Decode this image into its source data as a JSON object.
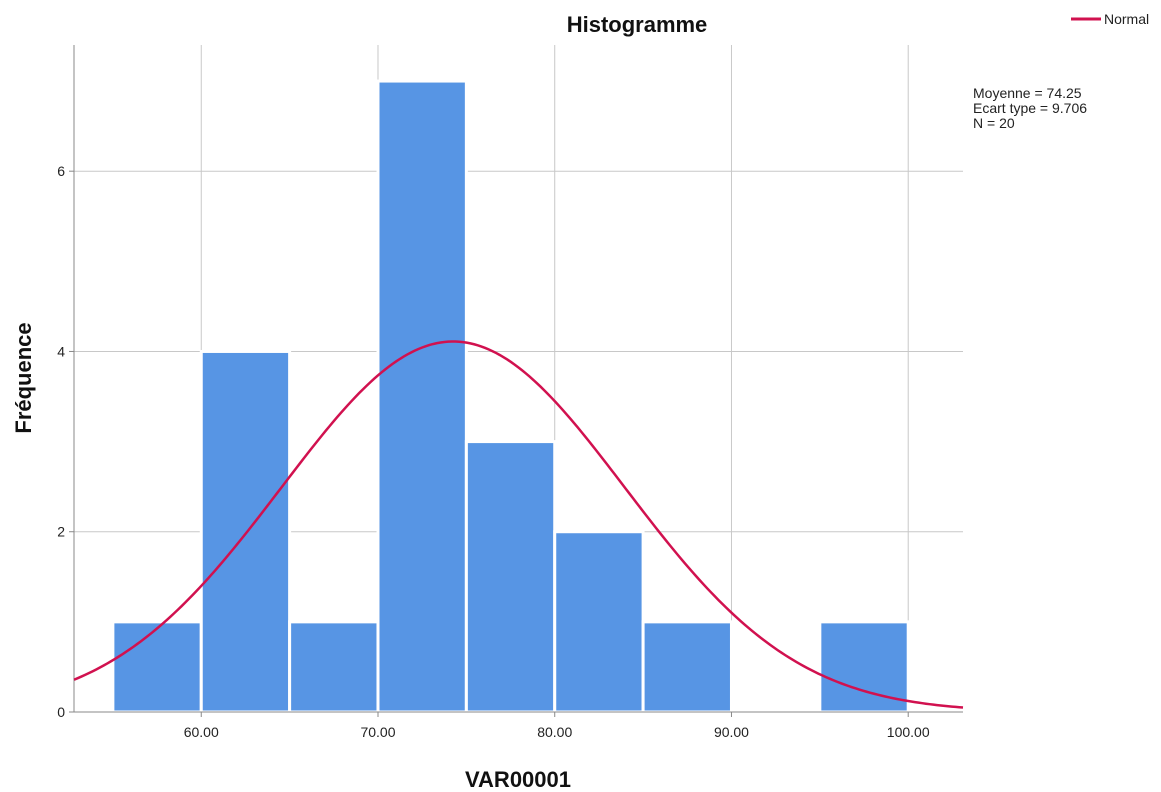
{
  "chart_data": {
    "type": "bar",
    "title": "Histogramme",
    "xlabel": "VAR00001",
    "ylabel": "Fréquence",
    "bins": [
      {
        "from": 55,
        "to": 60,
        "count": 1
      },
      {
        "from": 60,
        "to": 65,
        "count": 4
      },
      {
        "from": 65,
        "to": 70,
        "count": 1
      },
      {
        "from": 70,
        "to": 75,
        "count": 7
      },
      {
        "from": 75,
        "to": 80,
        "count": 3
      },
      {
        "from": 80,
        "to": 85,
        "count": 2
      },
      {
        "from": 85,
        "to": 90,
        "count": 1
      },
      {
        "from": 90,
        "to": 95,
        "count": 0
      },
      {
        "from": 95,
        "to": 100,
        "count": 1
      }
    ],
    "x_ticks": [
      {
        "value": 60,
        "label": "60.00"
      },
      {
        "value": 70,
        "label": "70.00"
      },
      {
        "value": 80,
        "label": "80.00"
      },
      {
        "value": 90,
        "label": "90.00"
      },
      {
        "value": 100,
        "label": "100.00"
      }
    ],
    "y_ticks": [
      {
        "value": 0,
        "label": "0"
      },
      {
        "value": 2,
        "label": "2"
      },
      {
        "value": 4,
        "label": "4"
      },
      {
        "value": 6,
        "label": "6"
      }
    ],
    "xlim": [
      52.8,
      103.1
    ],
    "ylim": [
      0,
      7.4
    ],
    "grid": true,
    "bar_color": "#5795e4",
    "normal_curve": {
      "name": "Normal",
      "mean": 74.25,
      "std": 9.706,
      "n": 20,
      "bin_width": 5,
      "color": "#d1114f"
    },
    "legend": {
      "position": "top-right",
      "entries": [
        "Normal"
      ]
    },
    "stats_text": [
      "Moyenne = 74.25",
      "Ecart type = 9.706",
      "N = 20"
    ]
  }
}
